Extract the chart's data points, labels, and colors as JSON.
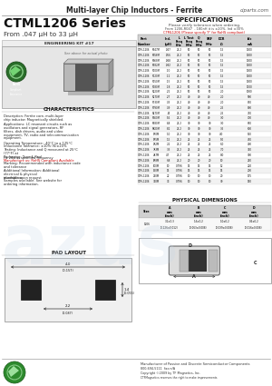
{
  "title_top": "Multi-layer Chip Inductors - Ferrite",
  "website": "ciparts.com",
  "series_title": "CTML1206 Series",
  "series_subtitle": "From .047 μH to 33 μH",
  "eng_kit": "ENGINEERING KIT #17",
  "spec_title": "SPECIFICATIONS",
  "spec_note1": "Please verify tolerance when ordering.",
  "spec_note2": "From 1206-R047  - 180nH it is ±20%, Ind ±30%",
  "spec_note3": "CTML1206 (Please specify 'F' for RoHS compliant)",
  "char_title": "CHARACTERISTICS",
  "char_desc": "Description:   Ferrite core, multi-layer chip inductor. Magnetically shielded.",
  "char_app": "Applications: LC resonant circuits such as oscillators and signal generators, RF filters, dish drivers, audio and video equipment, TV, radio and telecommunication equipment.",
  "char_op": "Operating Temperature: -40°C to a 125°C",
  "char_ind": "Inductance Tolerance: ±10% (K)±20%",
  "char_test": "Testing:  Inductance and Q measured at 25°C (77°F) at\nHz 26H at specified frequency",
  "char_pkg": "Packaging: Tape & Reel",
  "char_rohs": "RoHS Compliant Available",
  "char_mark": "Marking:  Recommended with inductance code and tolerance",
  "char_info": "Additional Information:  Additional electrical & physical\ninformation available upon request",
  "char_sample": "Samples available. See website for ordering information.",
  "pad_title": "PAD LAYOUT",
  "phys_title": "PHYSICAL DIMENSIONS",
  "bg_color": "#ffffff",
  "spec_rows": [
    [
      "CTML1206",
      "R047M",
      ".047",
      "25.2",
      "50",
      "50",
      "50",
      "1.5",
      "1300"
    ],
    [
      "CTML1206",
      "R056M",
      ".056",
      "25.2",
      "50",
      "50",
      "50",
      "1.5",
      "1300"
    ],
    [
      "CTML1206",
      "R068M",
      ".068",
      "25.2",
      "50",
      "50",
      "50",
      "1.5",
      "1300"
    ],
    [
      "CTML1206",
      "R082M",
      ".082",
      "25.2",
      "50",
      "50",
      "50",
      "1.5",
      "1300"
    ],
    [
      "CTML1206",
      "R100M",
      ".10",
      "25.2",
      "50",
      "50",
      "50",
      "1.5",
      "1300"
    ],
    [
      "CTML1206",
      "R120M",
      ".12",
      "25.2",
      "50",
      "50",
      "50",
      "1.5",
      "1300"
    ],
    [
      "CTML1206",
      "R150M",
      ".15",
      "25.2",
      "50",
      "50",
      "50",
      "1.5",
      "1300"
    ],
    [
      "CTML1206",
      "R180M",
      ".18",
      "25.2",
      "50",
      "50",
      "50",
      "1.5",
      "1100"
    ],
    [
      "CTML1206",
      "R220M",
      ".22",
      "25.2",
      "50",
      "50",
      "50",
      "2.0",
      "1000"
    ],
    [
      "CTML1206",
      "R270M",
      ".27",
      "25.2",
      "40",
      "40",
      "40",
      "2.0",
      "900"
    ],
    [
      "CTML1206",
      "R330M",
      ".33",
      "25.2",
      "40",
      "40",
      "40",
      "2.0",
      "850"
    ],
    [
      "CTML1206",
      "R390M",
      ".39",
      "25.2",
      "40",
      "40",
      "40",
      "2.5",
      "800"
    ],
    [
      "CTML1206",
      "R470M",
      ".47",
      "25.2",
      "40",
      "40",
      "40",
      "2.5",
      "750"
    ],
    [
      "CTML1206",
      "R560M",
      ".56",
      "25.2",
      "40",
      "40",
      "40",
      "3.0",
      "700"
    ],
    [
      "CTML1206",
      "R680M",
      ".68",
      "25.2",
      "30",
      "30",
      "30",
      "3.0",
      "650"
    ],
    [
      "CTML1206",
      "R820M",
      ".82",
      "25.2",
      "30",
      "30",
      "30",
      "3.5",
      "600"
    ],
    [
      "CTML1206",
      "1R0M",
      "1.0",
      "25.2",
      "30",
      "30",
      "30",
      "4.0",
      "550"
    ],
    [
      "CTML1206",
      "1R5M",
      "1.5",
      "25.2",
      "25",
      "25",
      "25",
      "5.0",
      "450"
    ],
    [
      "CTML1206",
      "2R2M",
      "2.2",
      "25.2",
      "25",
      "25",
      "25",
      "6.0",
      "400"
    ],
    [
      "CTML1206",
      "3R3M",
      "3.3",
      "25.2",
      "25",
      "25",
      "25",
      "7.0",
      "350"
    ],
    [
      "CTML1206",
      "4R7M",
      "4.7",
      "25.2",
      "25",
      "25",
      "25",
      "8.0",
      "300"
    ],
    [
      "CTML1206",
      "6R8M",
      "6.8",
      "25.2",
      "20",
      "20",
      "20",
      "10",
      "250"
    ],
    [
      "CTML1206",
      "100M",
      "10",
      "0.796",
      "15",
      "15",
      "15",
      "12",
      "220"
    ],
    [
      "CTML1206",
      "150M",
      "15",
      "0.796",
      "15",
      "15",
      "15",
      "15",
      "200"
    ],
    [
      "CTML1206",
      "220M",
      "22",
      "0.796",
      "10",
      "10",
      "10",
      "20",
      "175"
    ],
    [
      "CTML1206",
      "330M",
      "33",
      "0.796",
      "10",
      "10",
      "10",
      "30",
      "150"
    ]
  ],
  "footer_mfr": "Manufacturer of Passive and Discrete Semiconductor Components",
  "footer_phone": "800-694-5111  fax:n/A",
  "footer_copy": "Copyright ©2009 by TF Magnetics, Inc.",
  "footer_note": "CTFMagnetics reserves the right to make improvements"
}
